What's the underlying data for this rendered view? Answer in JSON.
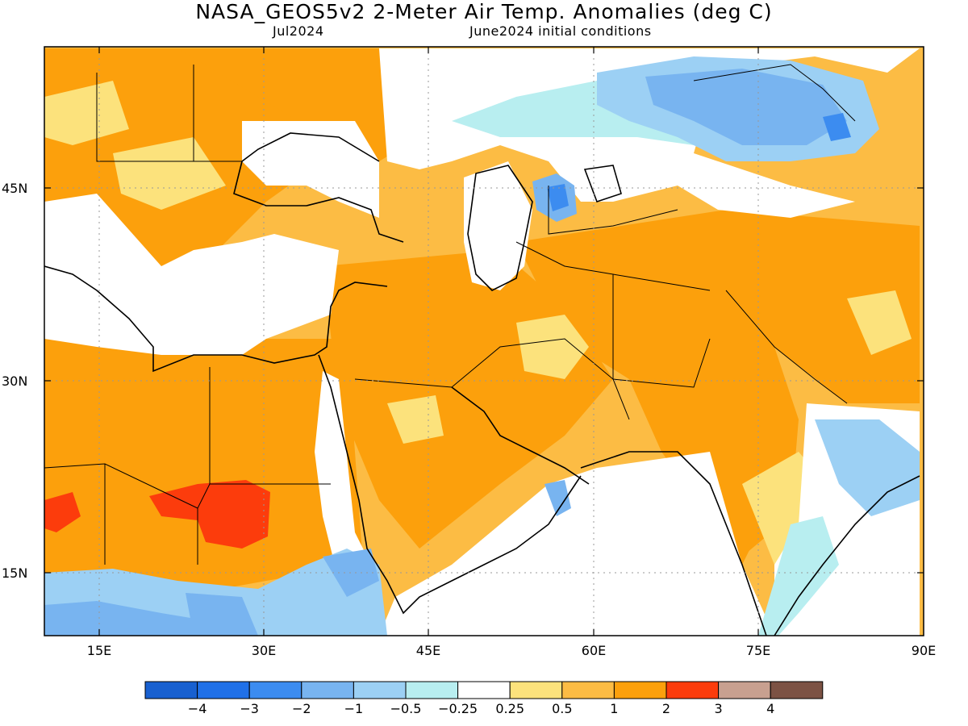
{
  "header": {
    "title": "NASA_GEOS5v2 2-Meter Air Temp. Anomalies (deg C)",
    "month": "Jul2024",
    "init": "June2024 initial conditions"
  },
  "axes": {
    "lat_labels": [
      "45N",
      "30N",
      "15N"
    ],
    "lon_labels": [
      "15E",
      "30E",
      "45E",
      "60E",
      "75E",
      "90E"
    ]
  },
  "colorbar": {
    "colors": [
      "#1860d0",
      "#2070e8",
      "#3c8cf0",
      "#78b4f0",
      "#9cd0f4",
      "#b8eef0",
      "#ffffff",
      "#fce27c",
      "#fcbc44",
      "#fca00c",
      "#fc3c0c",
      "#c8a090",
      "#7c5244"
    ],
    "labels": [
      "−4",
      "−3",
      "−2",
      "−1",
      "−0.5",
      "−0.25",
      "0.25",
      "0.5",
      "1",
      "2",
      "3",
      "4"
    ]
  }
}
